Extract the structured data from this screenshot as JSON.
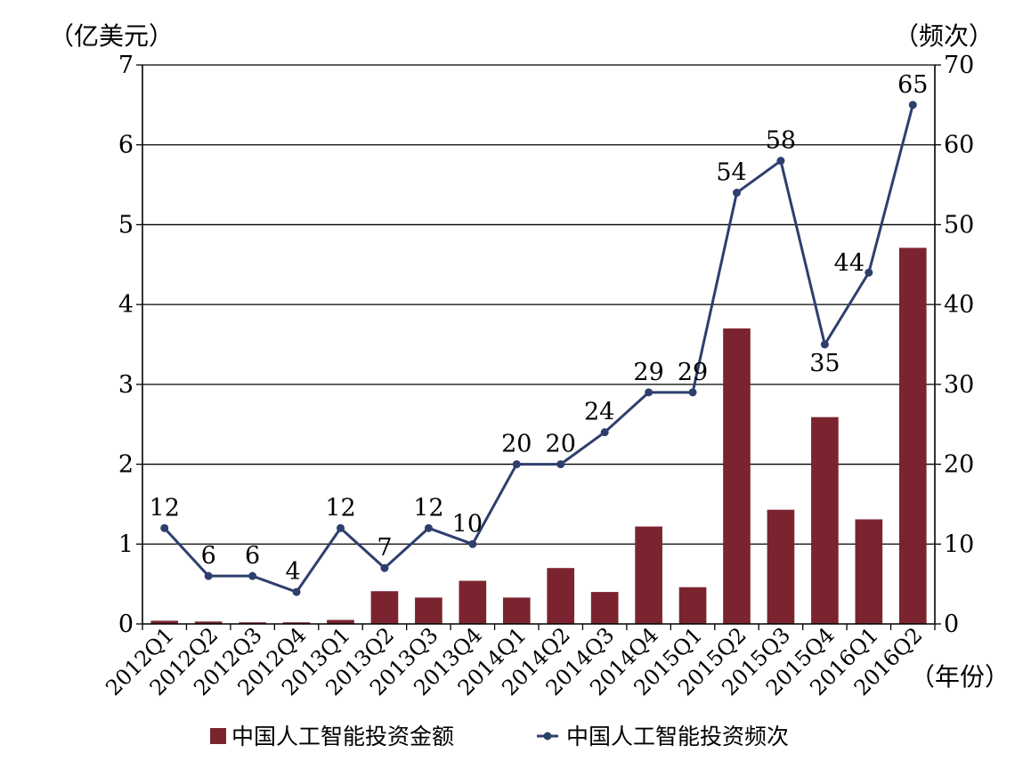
{
  "chart_data": {
    "type": "bar",
    "categories": [
      "2012Q1",
      "2012Q2",
      "2012Q3",
      "2012Q4",
      "2013Q1",
      "2013Q2",
      "2013Q3",
      "2013Q4",
      "2014Q1",
      "2014Q2",
      "2014Q3",
      "2014Q4",
      "2015Q1",
      "2015Q2",
      "2015Q3",
      "2015Q4",
      "2016Q1",
      "2016Q2"
    ],
    "series": [
      {
        "name": "中国人工智能投资金额",
        "type": "bar",
        "axis": "left",
        "color": "#7B2430",
        "values": [
          0.04,
          0.03,
          0.02,
          0.02,
          0.05,
          0.41,
          0.33,
          0.54,
          0.33,
          0.7,
          0.4,
          1.22,
          0.46,
          3.7,
          1.43,
          2.59,
          1.31,
          4.71
        ]
      },
      {
        "name": "中国人工智能投资频次",
        "type": "line",
        "axis": "right",
        "color": "#2E3F6E",
        "values": [
          12,
          6,
          6,
          4,
          12,
          7,
          12,
          10,
          20,
          20,
          24,
          29,
          29,
          54,
          58,
          35,
          44,
          65
        ]
      }
    ],
    "y_left": {
      "label": "（亿美元）",
      "range": [
        0,
        7
      ],
      "ticks": [
        0,
        1,
        2,
        3,
        4,
        5,
        6,
        7
      ]
    },
    "y_right": {
      "label": "（频次）",
      "range": [
        0,
        70
      ],
      "ticks": [
        0,
        10,
        20,
        30,
        40,
        50,
        60,
        70
      ]
    },
    "x_axis": {
      "label": "（年份）"
    },
    "grid": true,
    "legend": "bottom",
    "data_labels": "line series"
  }
}
